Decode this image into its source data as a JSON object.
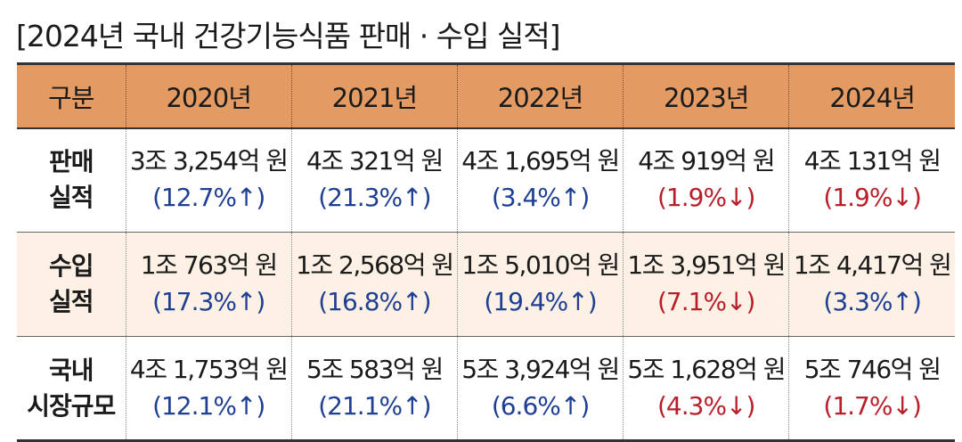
{
  "title": "[2024년 국내 건강기능식품 판매 · 수입 실적]",
  "table": {
    "header": [
      "구분",
      "2020년",
      "2021년",
      "2022년",
      "2023년",
      "2024년"
    ],
    "rows": [
      {
        "label_lines": [
          "판매",
          "실적"
        ],
        "cells": [
          {
            "amount": "3조 3,254억 원",
            "change": "(12.7%↑)",
            "direction": "up"
          },
          {
            "amount": "4조 321억 원",
            "change": "(21.3%↑)",
            "direction": "up"
          },
          {
            "amount": "4조 1,695억 원",
            "change": "(3.4%↑)",
            "direction": "up"
          },
          {
            "amount": "4조 919억 원",
            "change": "(1.9%↓)",
            "direction": "down"
          },
          {
            "amount": "4조 131억 원",
            "change": "(1.9%↓)",
            "direction": "down"
          }
        ]
      },
      {
        "label_lines": [
          "수입",
          "실적"
        ],
        "cells": [
          {
            "amount": "1조 763억 원",
            "change": "(17.3%↑)",
            "direction": "up"
          },
          {
            "amount": "1조 2,568억 원",
            "change": "(16.8%↑)",
            "direction": "up"
          },
          {
            "amount": "1조 5,010억 원",
            "change": "(19.4%↑)",
            "direction": "up"
          },
          {
            "amount": "1조 3,951억 원",
            "change": "(7.1%↓)",
            "direction": "down"
          },
          {
            "amount": "1조 4,417억 원",
            "change": "(3.3%↑)",
            "direction": "up"
          }
        ]
      },
      {
        "label_lines": [
          "국내",
          "시장규모"
        ],
        "cells": [
          {
            "amount": "4조 1,753억 원",
            "change": "(12.1%↑)",
            "direction": "up"
          },
          {
            "amount": "5조 583억 원",
            "change": "(21.1%↑)",
            "direction": "up"
          },
          {
            "amount": "5조 3,924억 원",
            "change": "(6.6%↑)",
            "direction": "up"
          },
          {
            "amount": "5조 1,628억 원",
            "change": "(4.3%↓)",
            "direction": "down"
          },
          {
            "amount": "5조 746억 원",
            "change": "(1.7%↓)",
            "direction": "down"
          }
        ]
      }
    ]
  },
  "colors": {
    "header_bg": "#e49b63",
    "alt_row_bg": "#fdf1e6",
    "increase": "#1f3f93",
    "decrease": "#b81f2a"
  }
}
